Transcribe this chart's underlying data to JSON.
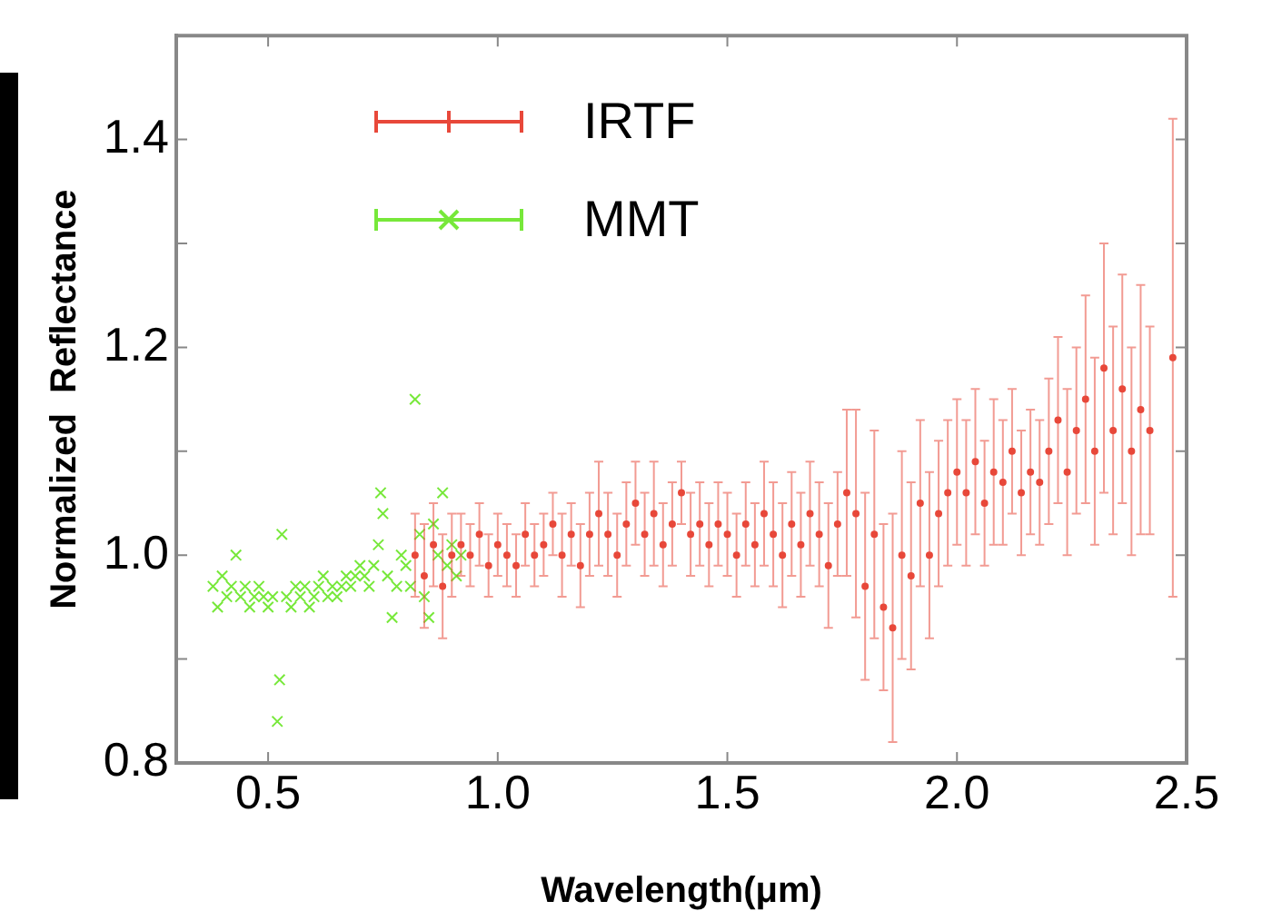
{
  "chart_data": {
    "type": "scatter",
    "xlabel": "Wavelength(μm)",
    "ylabel": "Normalized  Reflectance",
    "xlim": [
      0.3,
      2.5
    ],
    "xticks": [
      {
        "value": 0.5,
        "label": "0.5"
      },
      {
        "value": 1.0,
        "label": "1.0"
      },
      {
        "value": 1.5,
        "label": "1.5"
      },
      {
        "value": 2.0,
        "label": "2.0"
      },
      {
        "value": 2.5,
        "label": "2.5"
      }
    ],
    "ylim": [
      0.8,
      1.5
    ],
    "yticks": [
      {
        "value": 0.8,
        "label": "0.8"
      },
      {
        "value": 0.9,
        "label": null
      },
      {
        "value": 1.0,
        "label": "1.0"
      },
      {
        "value": 1.1,
        "label": null
      },
      {
        "value": 1.2,
        "label": "1.2"
      },
      {
        "value": 1.3,
        "label": null
      },
      {
        "value": 1.4,
        "label": "1.4"
      },
      {
        "value": 1.5,
        "label": null
      }
    ],
    "grid": false,
    "legend": "top left",
    "series": [
      {
        "name": "IRTF",
        "color": "#e8483a",
        "marker": "circle",
        "x": [
          0.82,
          0.84,
          0.86,
          0.88,
          0.9,
          0.92,
          0.94,
          0.96,
          0.98,
          1.0,
          1.02,
          1.04,
          1.06,
          1.08,
          1.1,
          1.12,
          1.14,
          1.16,
          1.18,
          1.2,
          1.22,
          1.24,
          1.26,
          1.28,
          1.3,
          1.32,
          1.34,
          1.36,
          1.38,
          1.4,
          1.42,
          1.44,
          1.46,
          1.48,
          1.5,
          1.52,
          1.54,
          1.56,
          1.58,
          1.6,
          1.62,
          1.64,
          1.66,
          1.68,
          1.7,
          1.72,
          1.74,
          1.76,
          1.78,
          1.8,
          1.82,
          1.84,
          1.86,
          1.88,
          1.9,
          1.92,
          1.94,
          1.96,
          1.98,
          2.0,
          2.02,
          2.04,
          2.06,
          2.08,
          2.1,
          2.12,
          2.14,
          2.16,
          2.18,
          2.2,
          2.22,
          2.24,
          2.26,
          2.28,
          2.3,
          2.32,
          2.34,
          2.36,
          2.38,
          2.4,
          2.42,
          2.47
        ],
        "values": [
          1.0,
          0.98,
          1.01,
          0.97,
          1.0,
          1.01,
          1.0,
          1.02,
          0.99,
          1.01,
          1.0,
          0.99,
          1.02,
          1.0,
          1.01,
          1.03,
          1.0,
          1.02,
          0.99,
          1.02,
          1.04,
          1.02,
          1.0,
          1.03,
          1.05,
          1.02,
          1.04,
          1.01,
          1.03,
          1.06,
          1.02,
          1.03,
          1.01,
          1.03,
          1.02,
          1.0,
          1.03,
          1.01,
          1.04,
          1.02,
          1.0,
          1.03,
          1.01,
          1.04,
          1.02,
          0.99,
          1.03,
          1.06,
          1.04,
          0.97,
          1.02,
          0.95,
          0.93,
          1.0,
          0.98,
          1.05,
          1.0,
          1.04,
          1.06,
          1.08,
          1.06,
          1.09,
          1.05,
          1.08,
          1.07,
          1.1,
          1.06,
          1.08,
          1.07,
          1.1,
          1.13,
          1.08,
          1.12,
          1.15,
          1.1,
          1.18,
          1.12,
          1.16,
          1.1,
          1.14,
          1.12,
          1.19
        ],
        "errors": [
          0.04,
          0.05,
          0.04,
          0.05,
          0.04,
          0.03,
          0.03,
          0.03,
          0.03,
          0.03,
          0.03,
          0.03,
          0.03,
          0.03,
          0.03,
          0.03,
          0.04,
          0.03,
          0.04,
          0.04,
          0.05,
          0.04,
          0.04,
          0.04,
          0.04,
          0.04,
          0.05,
          0.04,
          0.04,
          0.03,
          0.04,
          0.04,
          0.04,
          0.04,
          0.04,
          0.04,
          0.04,
          0.04,
          0.05,
          0.05,
          0.05,
          0.05,
          0.05,
          0.05,
          0.05,
          0.06,
          0.05,
          0.08,
          0.1,
          0.09,
          0.1,
          0.08,
          0.11,
          0.1,
          0.09,
          0.08,
          0.08,
          0.07,
          0.07,
          0.07,
          0.07,
          0.07,
          0.06,
          0.07,
          0.06,
          0.06,
          0.06,
          0.06,
          0.06,
          0.07,
          0.08,
          0.08,
          0.08,
          0.1,
          0.09,
          0.12,
          0.1,
          0.11,
          0.1,
          0.12,
          0.1,
          0.23
        ]
      },
      {
        "name": "MMT",
        "color": "#77e83a",
        "marker": "cross",
        "x": [
          0.38,
          0.39,
          0.4,
          0.41,
          0.42,
          0.43,
          0.44,
          0.45,
          0.46,
          0.47,
          0.48,
          0.49,
          0.5,
          0.51,
          0.52,
          0.525,
          0.53,
          0.54,
          0.55,
          0.56,
          0.57,
          0.58,
          0.59,
          0.6,
          0.61,
          0.62,
          0.63,
          0.64,
          0.65,
          0.66,
          0.67,
          0.68,
          0.69,
          0.7,
          0.71,
          0.72,
          0.73,
          0.74,
          0.745,
          0.75,
          0.76,
          0.77,
          0.78,
          0.79,
          0.8,
          0.81,
          0.82,
          0.83,
          0.84,
          0.85,
          0.86,
          0.87,
          0.88,
          0.89,
          0.9,
          0.91,
          0.92
        ],
        "values": [
          0.97,
          0.95,
          0.98,
          0.96,
          0.97,
          1.0,
          0.96,
          0.97,
          0.95,
          0.96,
          0.97,
          0.96,
          0.95,
          0.96,
          0.84,
          0.88,
          1.02,
          0.96,
          0.95,
          0.97,
          0.96,
          0.97,
          0.95,
          0.96,
          0.97,
          0.98,
          0.96,
          0.97,
          0.96,
          0.97,
          0.98,
          0.97,
          0.98,
          0.99,
          0.98,
          0.97,
          0.99,
          1.01,
          1.06,
          1.04,
          0.98,
          0.94,
          0.97,
          1.0,
          0.99,
          0.97,
          1.15,
          1.02,
          0.96,
          0.94,
          1.03,
          1.0,
          1.06,
          0.99,
          1.01,
          0.98,
          1.0
        ]
      }
    ]
  }
}
